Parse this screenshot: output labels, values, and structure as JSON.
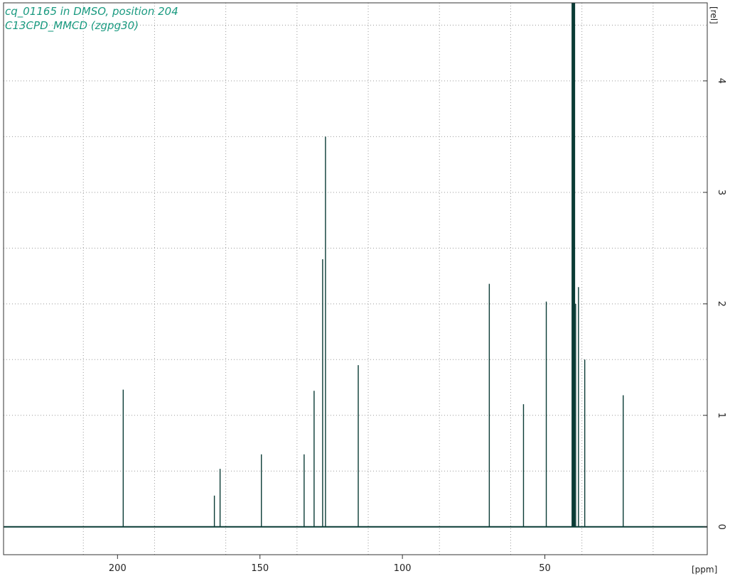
{
  "title_lines": [
    "cq_01165 in DMSO, position 204",
    "C13CPD_MMCD (zgpg30)"
  ],
  "colors": {
    "spectrum": "#0a3b35",
    "title": "#1a9a80",
    "frame": "#333333",
    "grid": "#9a9a9a"
  },
  "chart_data": {
    "type": "line",
    "xlabel": "[ppm]",
    "ylabel": "[rel]",
    "xlim": [
      240,
      -7
    ],
    "ylim": [
      -0.25,
      4.7
    ],
    "x_direction": "reversed",
    "x_ticks": [
      200,
      150,
      100,
      50
    ],
    "y_ticks": [
      0,
      1,
      2,
      3,
      4
    ],
    "x_grid": [
      212,
      187,
      162,
      137,
      112,
      87,
      62,
      37,
      12
    ],
    "y_grid": [
      0,
      0.5,
      1,
      1.5,
      2,
      2.5,
      3,
      3.5,
      4,
      4.5
    ],
    "grid": "dotted",
    "peaks": [
      {
        "ppm": 198.0,
        "intensity": 1.23
      },
      {
        "ppm": 166.0,
        "intensity": 0.28
      },
      {
        "ppm": 164.0,
        "intensity": 0.52
      },
      {
        "ppm": 149.5,
        "intensity": 0.65
      },
      {
        "ppm": 134.5,
        "intensity": 0.65
      },
      {
        "ppm": 131.0,
        "intensity": 1.22
      },
      {
        "ppm": 128.0,
        "intensity": 2.4
      },
      {
        "ppm": 127.0,
        "intensity": 3.5
      },
      {
        "ppm": 115.5,
        "intensity": 1.45
      },
      {
        "ppm": 69.5,
        "intensity": 2.18
      },
      {
        "ppm": 57.5,
        "intensity": 1.1
      },
      {
        "ppm": 49.5,
        "intensity": 2.02
      },
      {
        "ppm": 40.0,
        "intensity": 4.75
      },
      {
        "ppm": 39.2,
        "intensity": 2.0
      },
      {
        "ppm": 38.2,
        "intensity": 2.15
      },
      {
        "ppm": 36.0,
        "intensity": 1.5
      },
      {
        "ppm": 22.5,
        "intensity": 1.18
      }
    ]
  }
}
